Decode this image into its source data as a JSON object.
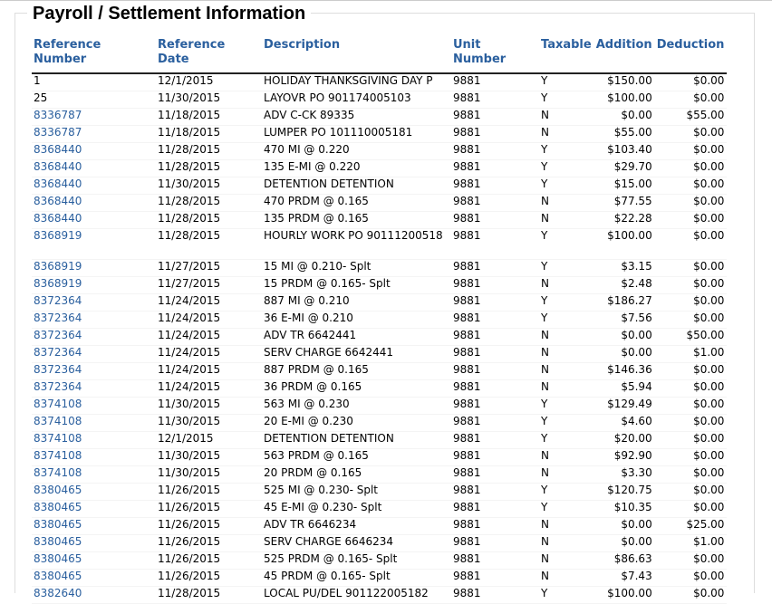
{
  "title": "Payroll / Settlement Information",
  "columns": {
    "ref_number": [
      "Reference",
      "Number"
    ],
    "ref_date": [
      "Reference",
      "Date"
    ],
    "description": "Description",
    "unit_number": [
      "Unit",
      "Number"
    ],
    "taxable": "Taxable",
    "addition": "Addition",
    "deduction": "Deduction"
  },
  "rows": [
    {
      "ref": "1",
      "date": "12/1/2015",
      "desc": "HOLIDAY THANKSGIVING DAY P",
      "unit": "9881",
      "tax": "Y",
      "add": "$150.00",
      "ded": "$0.00",
      "link": false
    },
    {
      "ref": "25",
      "date": "11/30/2015",
      "desc": "LAYOVR PO 901174005103",
      "unit": "9881",
      "tax": "Y",
      "add": "$100.00",
      "ded": "$0.00",
      "link": false
    },
    {
      "ref": "8336787",
      "date": "11/18/2015",
      "desc": "ADV C-CK 89335",
      "unit": "9881",
      "tax": "N",
      "add": "$0.00",
      "ded": "$55.00",
      "link": true
    },
    {
      "ref": "8336787",
      "date": "11/18/2015",
      "desc": "LUMPER PO 101110005181",
      "unit": "9881",
      "tax": "N",
      "add": "$55.00",
      "ded": "$0.00",
      "link": true
    },
    {
      "ref": "8368440",
      "date": "11/28/2015",
      "desc": "470 MI @ 0.220",
      "unit": "9881",
      "tax": "Y",
      "add": "$103.40",
      "ded": "$0.00",
      "link": true
    },
    {
      "ref": "8368440",
      "date": "11/28/2015",
      "desc": "135 E-MI @ 0.220",
      "unit": "9881",
      "tax": "Y",
      "add": "$29.70",
      "ded": "$0.00",
      "link": true
    },
    {
      "ref": "8368440",
      "date": "11/30/2015",
      "desc": "DETENTION DETENTION",
      "unit": "9881",
      "tax": "Y",
      "add": "$15.00",
      "ded": "$0.00",
      "link": true
    },
    {
      "ref": "8368440",
      "date": "11/28/2015",
      "desc": "470 PRDM @ 0.165",
      "unit": "9881",
      "tax": "N",
      "add": "$77.55",
      "ded": "$0.00",
      "link": true
    },
    {
      "ref": "8368440",
      "date": "11/28/2015",
      "desc": "135 PRDM @ 0.165",
      "unit": "9881",
      "tax": "N",
      "add": "$22.28",
      "ded": "$0.00",
      "link": true
    },
    {
      "ref": "8368919",
      "date": "11/28/2015",
      "desc": "HOURLY WORK PO 90111200518",
      "unit": "9881",
      "tax": "Y",
      "add": "$100.00",
      "ded": "$0.00",
      "link": true,
      "tall": true
    },
    {
      "ref": "8368919",
      "date": "11/27/2015",
      "desc": "15 MI @ 0.210- Splt",
      "unit": "9881",
      "tax": "Y",
      "add": "$3.15",
      "ded": "$0.00",
      "link": true
    },
    {
      "ref": "8368919",
      "date": "11/27/2015",
      "desc": "15 PRDM @ 0.165- Splt",
      "unit": "9881",
      "tax": "N",
      "add": "$2.48",
      "ded": "$0.00",
      "link": true
    },
    {
      "ref": "8372364",
      "date": "11/24/2015",
      "desc": "887 MI @ 0.210",
      "unit": "9881",
      "tax": "Y",
      "add": "$186.27",
      "ded": "$0.00",
      "link": true
    },
    {
      "ref": "8372364",
      "date": "11/24/2015",
      "desc": "36 E-MI @ 0.210",
      "unit": "9881",
      "tax": "Y",
      "add": "$7.56",
      "ded": "$0.00",
      "link": true
    },
    {
      "ref": "8372364",
      "date": "11/24/2015",
      "desc": "ADV TR 6642441",
      "unit": "9881",
      "tax": "N",
      "add": "$0.00",
      "ded": "$50.00",
      "link": true
    },
    {
      "ref": "8372364",
      "date": "11/24/2015",
      "desc": "SERV CHARGE 6642441",
      "unit": "9881",
      "tax": "N",
      "add": "$0.00",
      "ded": "$1.00",
      "link": true
    },
    {
      "ref": "8372364",
      "date": "11/24/2015",
      "desc": "887 PRDM @ 0.165",
      "unit": "9881",
      "tax": "N",
      "add": "$146.36",
      "ded": "$0.00",
      "link": true
    },
    {
      "ref": "8372364",
      "date": "11/24/2015",
      "desc": "36 PRDM @ 0.165",
      "unit": "9881",
      "tax": "N",
      "add": "$5.94",
      "ded": "$0.00",
      "link": true
    },
    {
      "ref": "8374108",
      "date": "11/30/2015",
      "desc": "563 MI @ 0.230",
      "unit": "9881",
      "tax": "Y",
      "add": "$129.49",
      "ded": "$0.00",
      "link": true
    },
    {
      "ref": "8374108",
      "date": "11/30/2015",
      "desc": "20 E-MI @ 0.230",
      "unit": "9881",
      "tax": "Y",
      "add": "$4.60",
      "ded": "$0.00",
      "link": true
    },
    {
      "ref": "8374108",
      "date": "12/1/2015",
      "desc": "DETENTION DETENTION",
      "unit": "9881",
      "tax": "Y",
      "add": "$20.00",
      "ded": "$0.00",
      "link": true
    },
    {
      "ref": "8374108",
      "date": "11/30/2015",
      "desc": "563 PRDM @ 0.165",
      "unit": "9881",
      "tax": "N",
      "add": "$92.90",
      "ded": "$0.00",
      "link": true
    },
    {
      "ref": "8374108",
      "date": "11/30/2015",
      "desc": "20 PRDM @ 0.165",
      "unit": "9881",
      "tax": "N",
      "add": "$3.30",
      "ded": "$0.00",
      "link": true
    },
    {
      "ref": "8380465",
      "date": "11/26/2015",
      "desc": "525 MI @ 0.230- Splt",
      "unit": "9881",
      "tax": "Y",
      "add": "$120.75",
      "ded": "$0.00",
      "link": true
    },
    {
      "ref": "8380465",
      "date": "11/26/2015",
      "desc": "45 E-MI @ 0.230- Splt",
      "unit": "9881",
      "tax": "Y",
      "add": "$10.35",
      "ded": "$0.00",
      "link": true
    },
    {
      "ref": "8380465",
      "date": "11/26/2015",
      "desc": "ADV TR 6646234",
      "unit": "9881",
      "tax": "N",
      "add": "$0.00",
      "ded": "$25.00",
      "link": true
    },
    {
      "ref": "8380465",
      "date": "11/26/2015",
      "desc": "SERV CHARGE 6646234",
      "unit": "9881",
      "tax": "N",
      "add": "$0.00",
      "ded": "$1.00",
      "link": true
    },
    {
      "ref": "8380465",
      "date": "11/26/2015",
      "desc": "525 PRDM @ 0.165- Splt",
      "unit": "9881",
      "tax": "N",
      "add": "$86.63",
      "ded": "$0.00",
      "link": true
    },
    {
      "ref": "8380465",
      "date": "11/26/2015",
      "desc": "45 PRDM @ 0.165- Splt",
      "unit": "9881",
      "tax": "N",
      "add": "$7.43",
      "ded": "$0.00",
      "link": true
    },
    {
      "ref": "8382640",
      "date": "11/28/2015",
      "desc": "LOCAL PU/DEL 901122005182",
      "unit": "9881",
      "tax": "Y",
      "add": "$100.00",
      "ded": "$0.00",
      "link": true
    }
  ]
}
